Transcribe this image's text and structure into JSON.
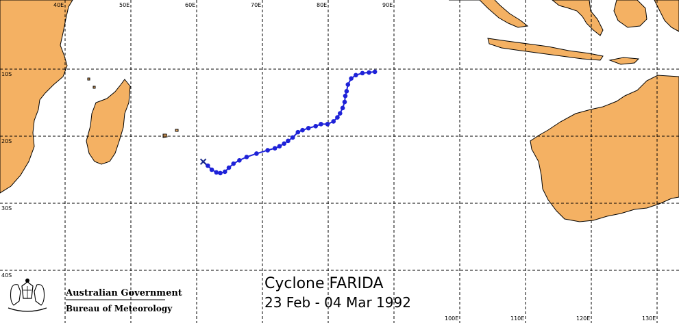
{
  "map": {
    "lon_labels": [
      {
        "lon": 40,
        "text": "40E"
      },
      {
        "lon": 50,
        "text": "50E"
      },
      {
        "lon": 60,
        "text": "60E"
      },
      {
        "lon": 70,
        "text": "70E"
      },
      {
        "lon": 80,
        "text": "80E"
      },
      {
        "lon": 90,
        "text": "90E"
      },
      {
        "lon": 100,
        "text": "100E"
      },
      {
        "lon": 110,
        "text": "110E"
      },
      {
        "lon": 120,
        "text": "120E"
      },
      {
        "lon": 130,
        "text": "130E"
      }
    ],
    "lat_labels": [
      {
        "lat": -10,
        "text": "10S"
      },
      {
        "lat": -20,
        "text": "20S"
      },
      {
        "lat": -30,
        "text": "30S"
      },
      {
        "lat": -40,
        "text": "40S"
      }
    ],
    "land_color": "#f4b163",
    "track_color": "#1e22d8"
  },
  "title": "Cyclone FARIDA",
  "date_range": "23 Feb - 04 Mar 1992",
  "logo": {
    "line1": "Australian Government",
    "line2": "Bureau of Meteorology"
  },
  "track": {
    "genesis": {
      "lon": 61.0,
      "lat": -23.8
    },
    "points": [
      {
        "lon": 61.0,
        "lat": -23.8
      },
      {
        "lon": 61.7,
        "lat": -24.4
      },
      {
        "lon": 62.3,
        "lat": -25.0
      },
      {
        "lon": 63.0,
        "lat": -25.4
      },
      {
        "lon": 63.6,
        "lat": -25.5
      },
      {
        "lon": 64.3,
        "lat": -25.3
      },
      {
        "lon": 64.9,
        "lat": -24.7
      },
      {
        "lon": 65.6,
        "lat": -24.1
      },
      {
        "lon": 66.5,
        "lat": -23.6
      },
      {
        "lon": 67.6,
        "lat": -23.1
      },
      {
        "lon": 69.1,
        "lat": -22.6
      },
      {
        "lon": 70.8,
        "lat": -22.1
      },
      {
        "lon": 71.9,
        "lat": -21.8
      },
      {
        "lon": 72.6,
        "lat": -21.5
      },
      {
        "lon": 73.3,
        "lat": -21.1
      },
      {
        "lon": 73.9,
        "lat": -20.7
      },
      {
        "lon": 74.6,
        "lat": -20.2
      },
      {
        "lon": 75.4,
        "lat": -19.4
      },
      {
        "lon": 76.1,
        "lat": -19.1
      },
      {
        "lon": 77.0,
        "lat": -18.8
      },
      {
        "lon": 78.1,
        "lat": -18.5
      },
      {
        "lon": 78.9,
        "lat": -18.2
      },
      {
        "lon": 79.9,
        "lat": -18.2
      },
      {
        "lon": 80.8,
        "lat": -17.8
      },
      {
        "lon": 81.4,
        "lat": -17.2
      },
      {
        "lon": 81.8,
        "lat": -16.6
      },
      {
        "lon": 82.2,
        "lat": -15.8
      },
      {
        "lon": 82.5,
        "lat": -14.9
      },
      {
        "lon": 82.6,
        "lat": -14.0
      },
      {
        "lon": 82.8,
        "lat": -13.3
      },
      {
        "lon": 83.0,
        "lat": -12.3
      },
      {
        "lon": 83.5,
        "lat": -11.4
      },
      {
        "lon": 84.2,
        "lat": -10.9
      },
      {
        "lon": 85.2,
        "lat": -10.6
      },
      {
        "lon": 86.2,
        "lat": -10.5
      },
      {
        "lon": 87.1,
        "lat": -10.4
      }
    ]
  }
}
